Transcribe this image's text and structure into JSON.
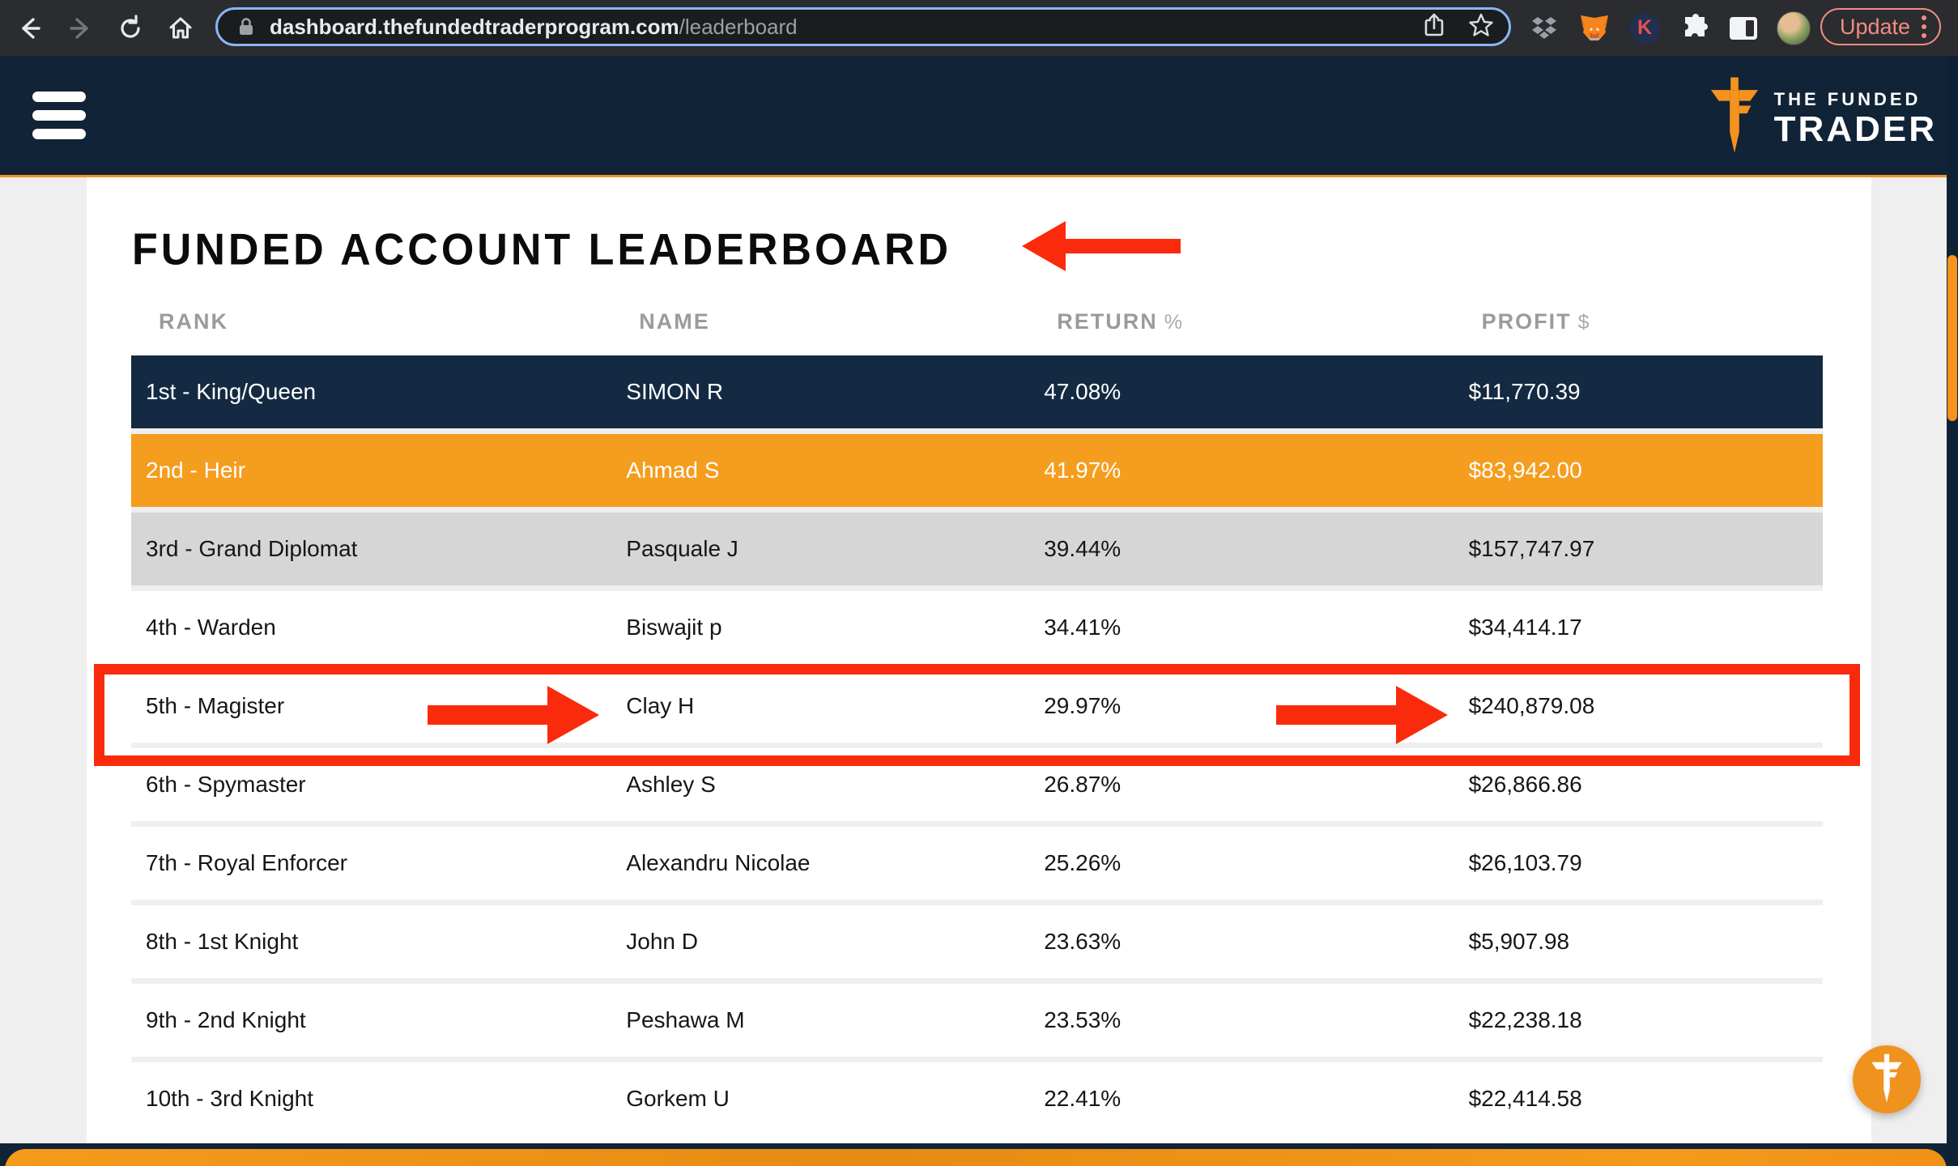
{
  "browser": {
    "url_host": "dashboard.thefundedtraderprogram.com",
    "url_path": "/leaderboard",
    "update_label": "Update",
    "extension_badge_letter": "K"
  },
  "header": {
    "brand_line1": "THE FUNDED",
    "brand_line2": "TRADER"
  },
  "page": {
    "title": "FUNDED ACCOUNT LEADERBOARD"
  },
  "table": {
    "columns": [
      {
        "label": "RANK",
        "suffix": ""
      },
      {
        "label": "NAME",
        "suffix": ""
      },
      {
        "label": "RETURN",
        "suffix": "%"
      },
      {
        "label": "PROFIT",
        "suffix": "$"
      }
    ],
    "rows": [
      {
        "rank": "1st - King/Queen",
        "name": "SIMON R",
        "return": "47.08%",
        "profit": "$11,770.39"
      },
      {
        "rank": "2nd - Heir",
        "name": "Ahmad S",
        "return": "41.97%",
        "profit": "$83,942.00"
      },
      {
        "rank": "3rd - Grand Diplomat",
        "name": "Pasquale J",
        "return": "39.44%",
        "profit": "$157,747.97"
      },
      {
        "rank": "4th - Warden",
        "name": "Biswajit p",
        "return": "34.41%",
        "profit": "$34,414.17"
      },
      {
        "rank": "5th - Magister",
        "name": "Clay H",
        "return": "29.97%",
        "profit": "$240,879.08"
      },
      {
        "rank": "6th - Spymaster",
        "name": "Ashley S",
        "return": "26.87%",
        "profit": "$26,866.86"
      },
      {
        "rank": "7th - Royal Enforcer",
        "name": "Alexandru Nicolae",
        "return": "25.26%",
        "profit": "$26,103.79"
      },
      {
        "rank": "8th - 1st Knight",
        "name": "John D",
        "return": "23.63%",
        "profit": "$5,907.98"
      },
      {
        "rank": "9th - 2nd Knight",
        "name": "Peshawa M",
        "return": "23.53%",
        "profit": "$22,238.18"
      },
      {
        "rank": "10th - 3rd Knight",
        "name": "Gorkem U",
        "return": "22.41%",
        "profit": "$22,414.58"
      }
    ]
  },
  "colors": {
    "brand_orange": "#F6921E",
    "brand_navy": "#112336",
    "row_navy": "#132A42",
    "row_orange": "#F59D1E",
    "row_gray": "#D6D6D6",
    "annotation_red": "#FA2B0C",
    "chrome_update": "#F28B82"
  }
}
